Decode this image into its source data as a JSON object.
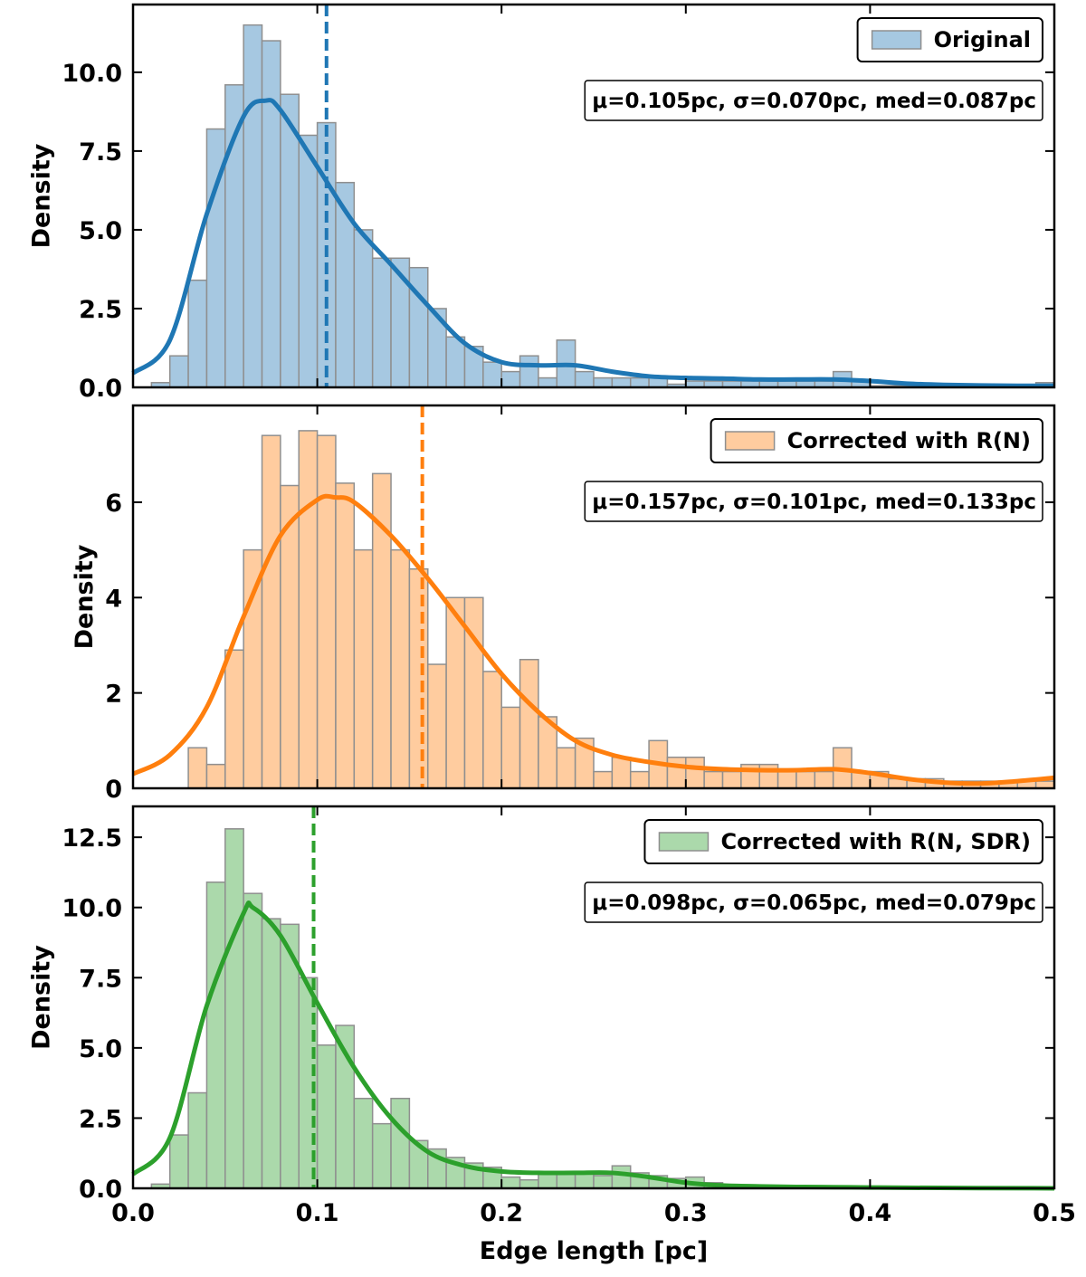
{
  "chart_data": [
    {
      "type": "histogram",
      "name": "Original",
      "color": "#a6c8e1",
      "edgecolor": "#8f8f8f",
      "bins": [
        0.01,
        0.02,
        0.03,
        0.04,
        0.05,
        0.06,
        0.07,
        0.08,
        0.09,
        0.1,
        0.11,
        0.12,
        0.13,
        0.14,
        0.15,
        0.16,
        0.17,
        0.18,
        0.19,
        0.2,
        0.21,
        0.22,
        0.23,
        0.24,
        0.25,
        0.26,
        0.27,
        0.28,
        0.29,
        0.3,
        0.31,
        0.32,
        0.33,
        0.34,
        0.35,
        0.36,
        0.37,
        0.38,
        0.39,
        0.4,
        0.41,
        0.42,
        0.43,
        0.44,
        0.45,
        0.46,
        0.47,
        0.48,
        0.49,
        0.5
      ],
      "counts": [
        0.15,
        1.0,
        3.4,
        8.2,
        9.6,
        11.5,
        11.0,
        9.3,
        8.0,
        8.4,
        6.5,
        5.0,
        4.1,
        4.1,
        3.8,
        2.5,
        1.6,
        1.3,
        0.8,
        0.5,
        1.0,
        0.3,
        1.5,
        0.5,
        0.3,
        0.3,
        0.3,
        0.3,
        0.1,
        0.2,
        0.2,
        0.2,
        0.2,
        0.2,
        0.2,
        0.2,
        0.2,
        0.5,
        0.2,
        0.05,
        0.05,
        0.05,
        0.05,
        0.05,
        0.05,
        0.05,
        0.05,
        0.05,
        0.15
      ],
      "kde": {
        "color": "#1f77b4",
        "x": [
          0,
          0.02,
          0.04,
          0.06,
          0.072,
          0.08,
          0.1,
          0.12,
          0.14,
          0.16,
          0.18,
          0.2,
          0.22,
          0.24,
          0.26,
          0.28,
          0.3,
          0.32,
          0.34,
          0.36,
          0.38,
          0.4,
          0.42,
          0.44,
          0.46,
          0.48,
          0.5
        ],
        "y": [
          0.45,
          1.5,
          5.5,
          8.6,
          9.1,
          8.8,
          7.0,
          5.2,
          3.9,
          2.6,
          1.4,
          0.8,
          0.7,
          0.7,
          0.5,
          0.35,
          0.3,
          0.28,
          0.25,
          0.25,
          0.25,
          0.2,
          0.12,
          0.08,
          0.06,
          0.05,
          0.05
        ]
      },
      "mean": 0.105,
      "annotation": "μ=0.105pc, σ=0.070pc, med=0.087pc",
      "ylabel": "Density",
      "xlim": [
        0,
        0.5
      ],
      "ylim": [
        0,
        12.15
      ],
      "xticks": [
        0,
        0.1,
        0.2,
        0.3,
        0.4,
        0.5
      ],
      "yticks": [
        {
          "value": 0,
          "label": "0.0"
        },
        2.5,
        {
          "value": 5,
          "label": "5.0"
        },
        7.5,
        {
          "value": 10,
          "label": "10.0"
        }
      ]
    },
    {
      "type": "histogram",
      "name": "Corrected with R(N)",
      "color": "#ffcc9f",
      "edgecolor": "#8f8f8f",
      "bins": [
        0.03,
        0.04,
        0.05,
        0.06,
        0.07,
        0.08,
        0.09,
        0.1,
        0.11,
        0.12,
        0.13,
        0.14,
        0.15,
        0.16,
        0.17,
        0.18,
        0.19,
        0.2,
        0.21,
        0.22,
        0.23,
        0.24,
        0.25,
        0.26,
        0.27,
        0.28,
        0.29,
        0.3,
        0.31,
        0.32,
        0.33,
        0.34,
        0.35,
        0.36,
        0.37,
        0.38,
        0.39,
        0.4,
        0.41,
        0.42,
        0.43,
        0.44,
        0.45,
        0.46,
        0.47,
        0.48,
        0.49,
        0.5
      ],
      "counts": [
        0.85,
        0.5,
        2.9,
        5.0,
        7.4,
        6.35,
        7.5,
        7.4,
        6.4,
        5.0,
        6.6,
        5.0,
        4.6,
        2.6,
        4.0,
        4.0,
        2.45,
        1.7,
        2.7,
        1.5,
        0.85,
        1.05,
        0.35,
        0.65,
        0.35,
        1.0,
        0.65,
        0.65,
        0.35,
        0.35,
        0.5,
        0.5,
        0.35,
        0.35,
        0.35,
        0.85,
        0.35,
        0.35,
        0.2,
        0.2,
        0.2,
        0.15,
        0.15,
        0.15,
        0.15,
        0.15,
        0.15
      ],
      "kde": {
        "color": "#ff7f0e",
        "x": [
          0,
          0.02,
          0.04,
          0.06,
          0.08,
          0.1,
          0.11,
          0.12,
          0.14,
          0.16,
          0.18,
          0.2,
          0.22,
          0.24,
          0.26,
          0.28,
          0.3,
          0.32,
          0.34,
          0.36,
          0.38,
          0.4,
          0.42,
          0.44,
          0.46,
          0.48,
          0.5
        ],
        "y": [
          0.3,
          0.7,
          1.7,
          3.6,
          5.3,
          6.05,
          6.1,
          6.0,
          5.3,
          4.4,
          3.4,
          2.4,
          1.6,
          1.0,
          0.7,
          0.55,
          0.45,
          0.4,
          0.38,
          0.38,
          0.4,
          0.32,
          0.2,
          0.12,
          0.1,
          0.15,
          0.22
        ]
      },
      "mean": 0.157,
      "annotation": "μ=0.157pc, σ=0.101pc, med=0.133pc",
      "ylabel": "Density",
      "xlim": [
        0,
        0.5
      ],
      "ylim": [
        0,
        8.03
      ],
      "xticks": [
        0,
        0.1,
        0.2,
        0.3,
        0.4,
        0.5
      ],
      "yticks": [
        0,
        2,
        4,
        6
      ]
    },
    {
      "type": "histogram",
      "name": "Corrected with R(N, SDR)",
      "color": "#abd9ab",
      "edgecolor": "#8f8f8f",
      "bins": [
        0.01,
        0.02,
        0.03,
        0.04,
        0.05,
        0.06,
        0.07,
        0.08,
        0.09,
        0.1,
        0.11,
        0.12,
        0.13,
        0.14,
        0.15,
        0.16,
        0.17,
        0.18,
        0.19,
        0.2,
        0.21,
        0.22,
        0.23,
        0.24,
        0.25,
        0.26,
        0.27,
        0.28,
        0.29,
        0.3,
        0.31,
        0.32,
        0.33,
        0.34,
        0.35,
        0.36,
        0.37,
        0.38,
        0.39,
        0.4,
        0.41,
        0.42,
        0.43,
        0.44,
        0.45,
        0.46,
        0.47,
        0.48,
        0.49,
        0.5
      ],
      "counts": [
        0.15,
        1.9,
        3.4,
        10.9,
        12.8,
        10.5,
        9.6,
        9.4,
        7.5,
        5.1,
        5.8,
        3.2,
        2.3,
        3.2,
        1.7,
        1.4,
        1.1,
        0.9,
        0.75,
        0.4,
        0.3,
        0.5,
        0.5,
        0.6,
        0.45,
        0.8,
        0.55,
        0.45,
        0.35,
        0.4,
        0.2,
        0.1,
        0.1,
        0.1,
        0.05,
        0.05,
        0.05,
        0.05,
        0.05,
        0.05,
        0.05,
        0.05,
        0.05,
        0.05,
        0.05,
        0.05,
        0.05,
        0.05,
        0.05
      ],
      "kde": {
        "color": "#2ca02c",
        "x": [
          0,
          0.02,
          0.04,
          0.06,
          0.065,
          0.08,
          0.1,
          0.12,
          0.14,
          0.16,
          0.18,
          0.2,
          0.22,
          0.24,
          0.26,
          0.28,
          0.3,
          0.32,
          0.34,
          0.36,
          0.38,
          0.4,
          0.42,
          0.5
        ],
        "y": [
          0.5,
          1.8,
          6.5,
          9.8,
          10.0,
          9.0,
          6.6,
          4.3,
          2.5,
          1.3,
          0.8,
          0.6,
          0.55,
          0.55,
          0.55,
          0.4,
          0.2,
          0.1,
          0.07,
          0.05,
          0.04,
          0.03,
          0.02,
          0.0
        ]
      },
      "mean": 0.098,
      "annotation": "μ=0.098pc, σ=0.065pc, med=0.079pc",
      "ylabel": "Density",
      "xlabel": "Edge length [pc]",
      "xlim": [
        0,
        0.5
      ],
      "ylim": [
        0,
        13.6
      ],
      "xticks": [
        {
          "value": 0,
          "label": "0.0"
        },
        0.1,
        0.2,
        0.3,
        0.4,
        0.5
      ],
      "yticks": [
        {
          "value": 0,
          "label": "0.0"
        },
        2.5,
        {
          "value": 5,
          "label": "5.0"
        },
        7.5,
        {
          "value": 10,
          "label": "10.0"
        },
        12.5
      ]
    }
  ]
}
